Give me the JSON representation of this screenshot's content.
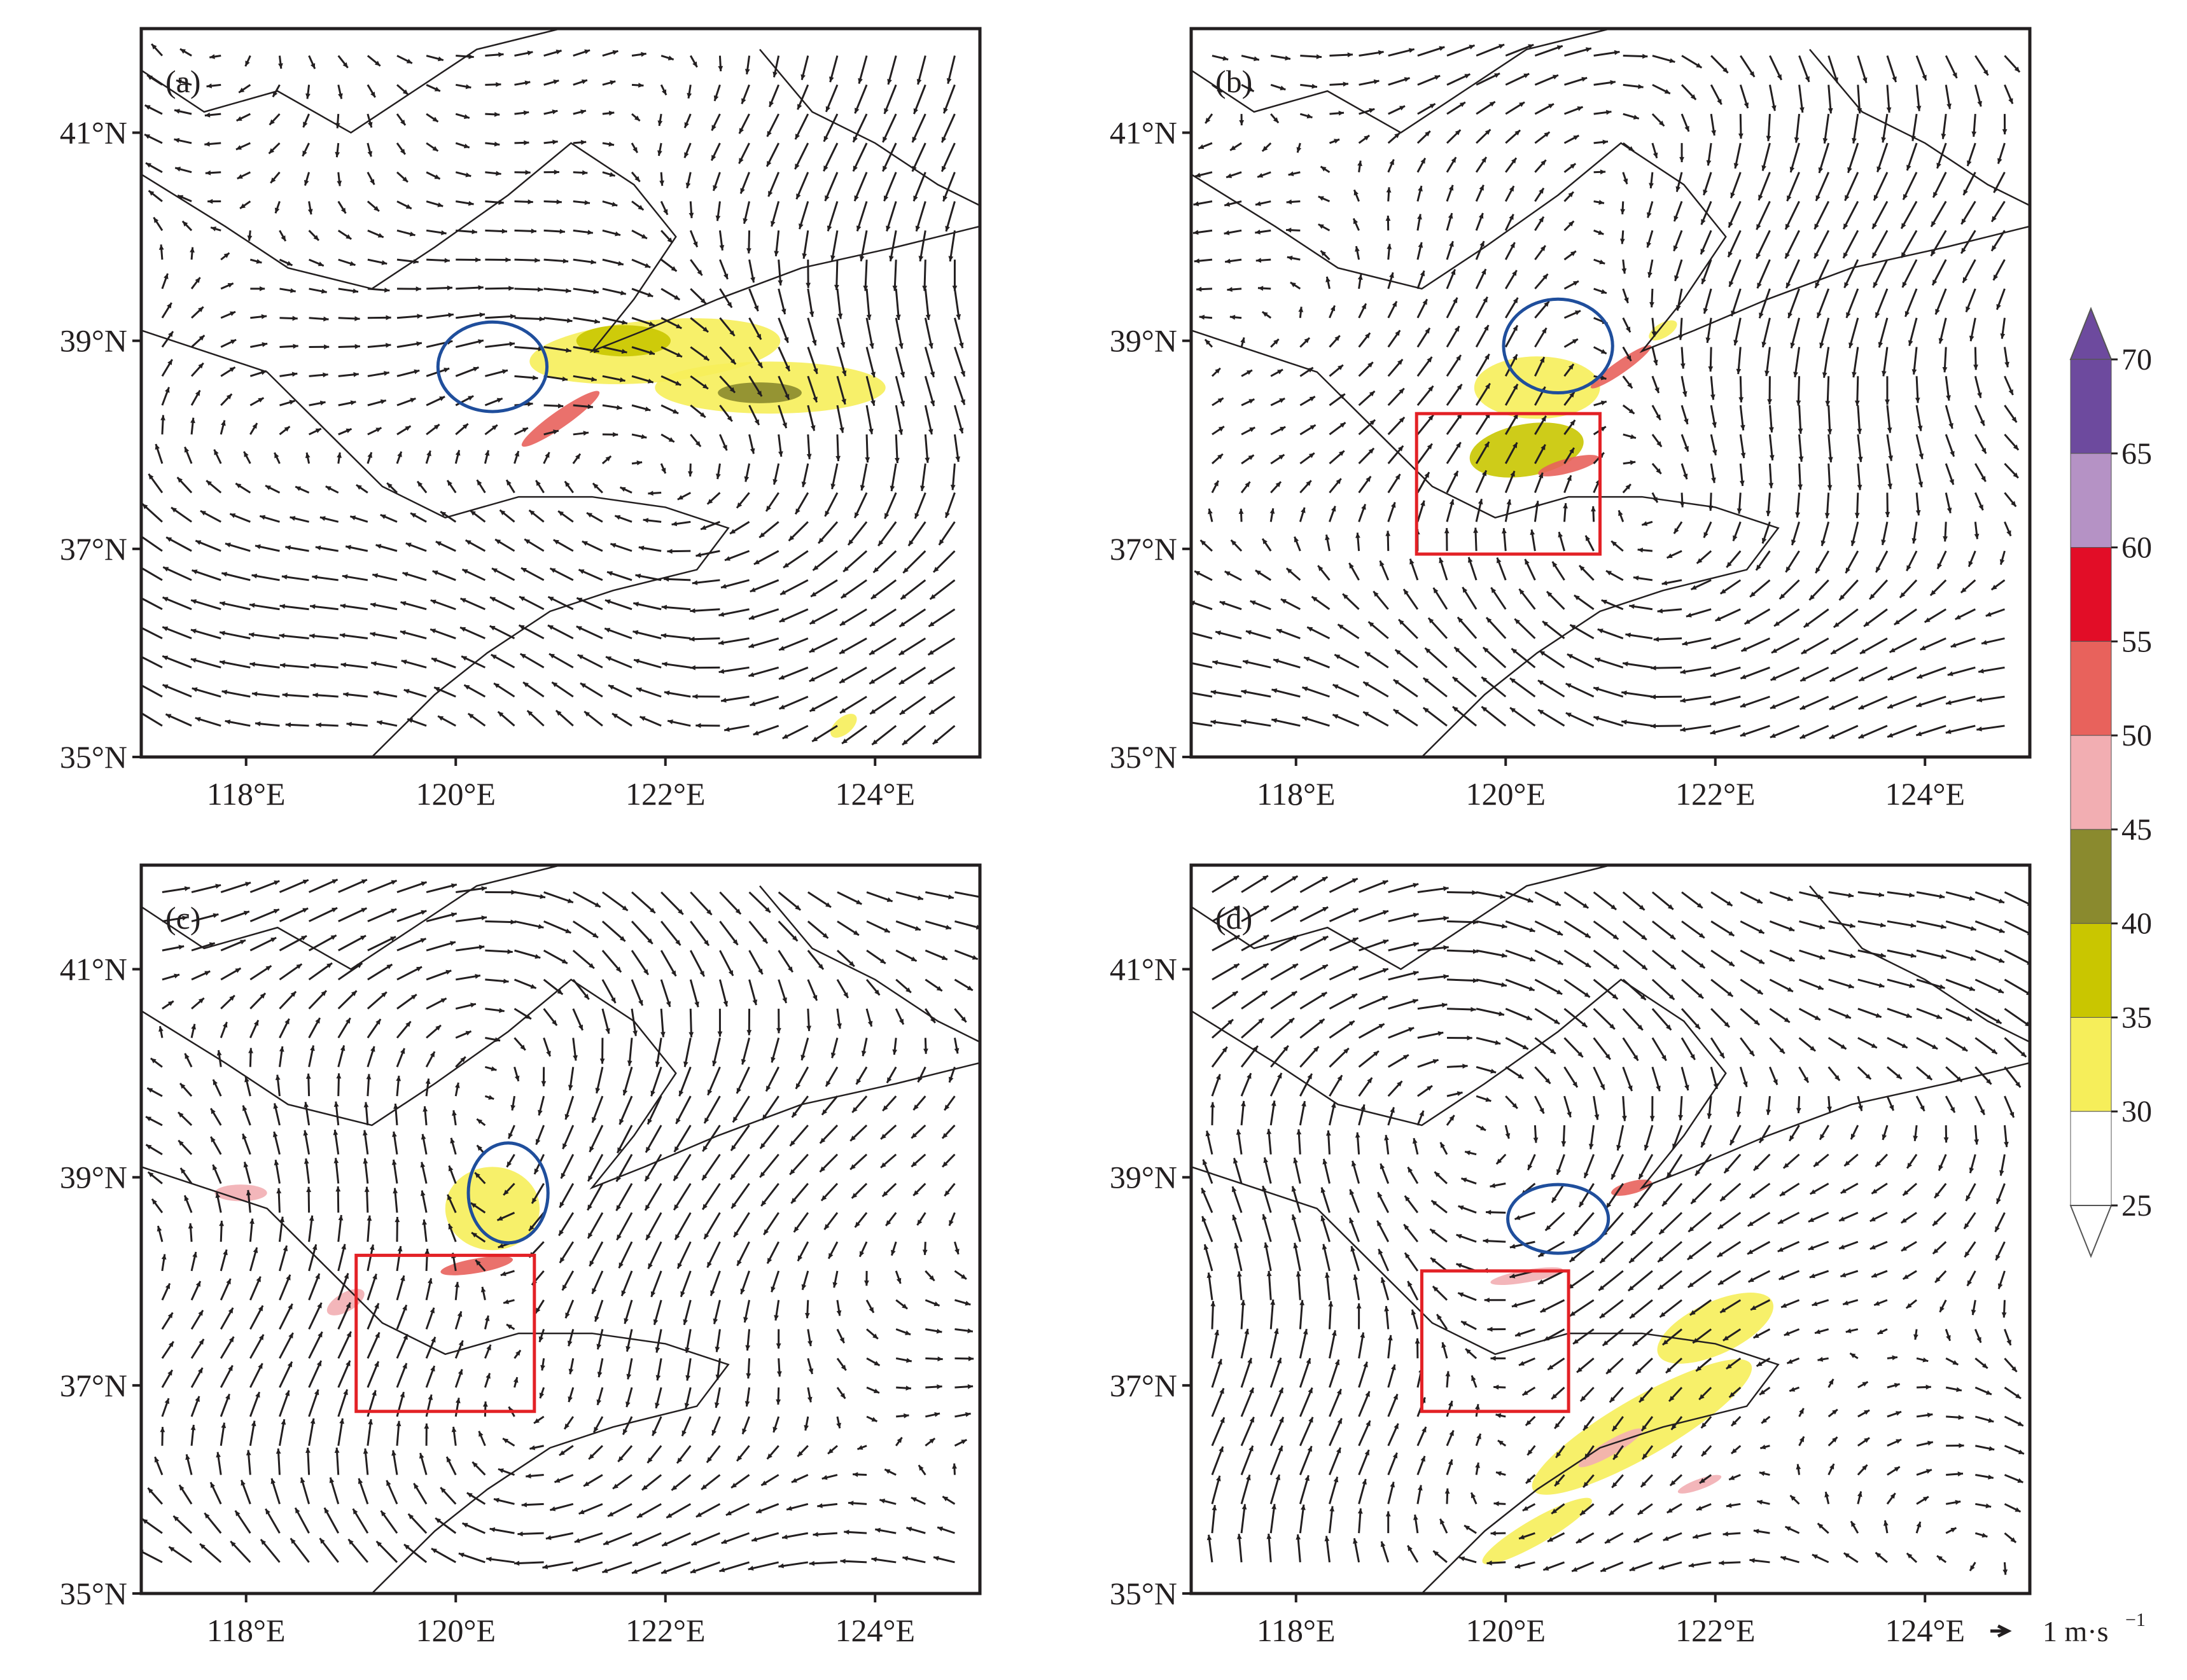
{
  "figure": {
    "lat_ticks": [
      {
        "value": 41,
        "label": "41°N"
      },
      {
        "value": 39,
        "label": "39°N"
      },
      {
        "value": 37,
        "label": "37°N"
      },
      {
        "value": 35,
        "label": "35°N"
      }
    ],
    "lon_ticks": [
      {
        "value": 118,
        "label": "118°E"
      },
      {
        "value": 120,
        "label": "120°E"
      },
      {
        "value": 122,
        "label": "122°E"
      },
      {
        "value": 124,
        "label": "124°E"
      }
    ],
    "lon_range": [
      117,
      125
    ],
    "lat_range": [
      35,
      42
    ],
    "panels": [
      {
        "label": "(a)",
        "ellipses": [
          {
            "lon": 120.35,
            "lat": 38.75,
            "rlon": 0.52,
            "rlat": 0.43,
            "color": "#1f4e9c"
          }
        ],
        "boxes": [],
        "echo_regions": [
          {
            "lon": 121.9,
            "lat": 38.9,
            "rlon": 1.2,
            "rlat": 0.3,
            "angle": -5,
            "level": 33
          },
          {
            "lon": 123.0,
            "lat": 38.55,
            "rlon": 1.1,
            "rlat": 0.25,
            "angle": 0,
            "level": 33
          },
          {
            "lon": 121.6,
            "lat": 39.0,
            "rlon": 0.45,
            "rlat": 0.15,
            "angle": 0,
            "level": 37
          },
          {
            "lon": 122.9,
            "lat": 38.5,
            "rlon": 0.4,
            "rlat": 0.1,
            "angle": 0,
            "level": 42
          },
          {
            "lon": 121.0,
            "lat": 38.25,
            "rlon": 0.45,
            "rlat": 0.08,
            "angle": -35,
            "level": 52
          },
          {
            "lon": 123.7,
            "lat": 35.3,
            "rlon": 0.15,
            "rlat": 0.08,
            "angle": -40,
            "level": 33
          }
        ]
      },
      {
        "label": "(b)",
        "ellipses": [
          {
            "lon": 120.5,
            "lat": 38.95,
            "rlon": 0.52,
            "rlat": 0.45,
            "color": "#1f4e9c"
          }
        ],
        "boxes": [
          {
            "lon0": 119.15,
            "lon1": 120.9,
            "lat0": 36.95,
            "lat1": 38.3,
            "color": "#e32126"
          }
        ],
        "echo_regions": [
          {
            "lon": 120.3,
            "lat": 38.55,
            "rlon": 0.6,
            "rlat": 0.3,
            "angle": 0,
            "level": 33
          },
          {
            "lon": 120.2,
            "lat": 37.95,
            "rlon": 0.55,
            "rlat": 0.25,
            "angle": -10,
            "level": 37
          },
          {
            "lon": 120.6,
            "lat": 37.8,
            "rlon": 0.3,
            "rlat": 0.07,
            "angle": -15,
            "level": 52
          },
          {
            "lon": 121.1,
            "lat": 38.75,
            "rlon": 0.35,
            "rlat": 0.06,
            "angle": -35,
            "level": 52
          },
          {
            "lon": 121.5,
            "lat": 39.1,
            "rlon": 0.15,
            "rlat": 0.07,
            "angle": -30,
            "level": 33
          }
        ]
      },
      {
        "label": "(c)",
        "ellipses": [
          {
            "lon": 120.5,
            "lat": 38.85,
            "rlon": 0.38,
            "rlat": 0.48,
            "color": "#1f4e9c"
          }
        ],
        "boxes": [
          {
            "lon0": 119.05,
            "lon1": 120.75,
            "lat0": 36.75,
            "lat1": 38.25,
            "color": "#e32126"
          }
        ],
        "echo_regions": [
          {
            "lon": 120.35,
            "lat": 38.7,
            "rlon": 0.45,
            "rlat": 0.4,
            "angle": 0,
            "level": 33
          },
          {
            "lon": 120.2,
            "lat": 38.15,
            "rlon": 0.35,
            "rlat": 0.07,
            "angle": -10,
            "level": 52
          },
          {
            "lon": 117.95,
            "lat": 38.85,
            "rlon": 0.25,
            "rlat": 0.08,
            "angle": 0,
            "level": 48
          },
          {
            "lon": 118.95,
            "lat": 37.8,
            "rlon": 0.2,
            "rlat": 0.09,
            "angle": -30,
            "level": 48
          }
        ]
      },
      {
        "label": "(d)",
        "ellipses": [
          {
            "lon": 120.5,
            "lat": 38.6,
            "rlon": 0.48,
            "rlat": 0.33,
            "color": "#1f4e9c"
          }
        ],
        "boxes": [
          {
            "lon0": 119.2,
            "lon1": 120.6,
            "lat0": 36.75,
            "lat1": 38.1,
            "color": "#e32126"
          }
        ],
        "echo_regions": [
          {
            "lon": 122.0,
            "lat": 37.55,
            "rlon": 0.6,
            "rlat": 0.25,
            "angle": -25,
            "level": 33
          },
          {
            "lon": 121.3,
            "lat": 36.6,
            "rlon": 1.2,
            "rlat": 0.28,
            "angle": -30,
            "level": 33
          },
          {
            "lon": 120.3,
            "lat": 35.6,
            "rlon": 0.6,
            "rlat": 0.12,
            "angle": -30,
            "level": 33
          },
          {
            "lon": 121.0,
            "lat": 36.4,
            "rlon": 0.35,
            "rlat": 0.07,
            "angle": -30,
            "level": 48
          },
          {
            "lon": 121.85,
            "lat": 36.05,
            "rlon": 0.22,
            "rlat": 0.05,
            "angle": -20,
            "level": 48
          },
          {
            "lon": 120.2,
            "lat": 38.05,
            "rlon": 0.35,
            "rlat": 0.06,
            "angle": -10,
            "level": 48
          },
          {
            "lon": 121.2,
            "lat": 38.9,
            "rlon": 0.2,
            "rlat": 0.06,
            "angle": -15,
            "level": 52
          }
        ]
      }
    ],
    "colorbar": {
      "levels": [
        "25",
        "30",
        "35",
        "40",
        "45",
        "50",
        "55",
        "60",
        "65",
        "70"
      ],
      "colors": [
        "#ffffff",
        "#f6ee5a",
        "#c9c600",
        "#8a8a2e",
        "#f2aeb2",
        "#e8625c",
        "#e20d27",
        "#b592c5",
        "#6d4a9e"
      ],
      "extend_low_color": "#ffffff",
      "extend_high_color": "#6d4a9e"
    },
    "reference_vector": {
      "label": "1 m·s",
      "exponent": "−1"
    },
    "colors": {
      "coastline": "#231f20",
      "arrow": "#231f20",
      "frame": "#231f20"
    }
  }
}
